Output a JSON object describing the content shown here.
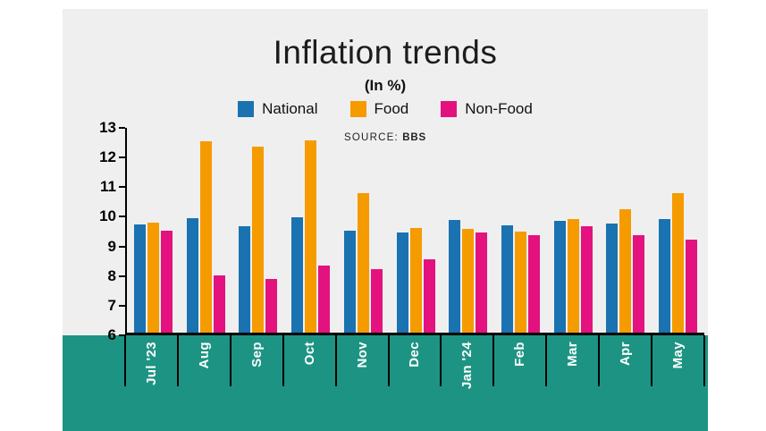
{
  "title": "Inflation trends",
  "subtitle": "(In %)",
  "source": {
    "label": "SOURCE:",
    "value": "BBS"
  },
  "legend": [
    {
      "name": "National",
      "color": "#1a72b0"
    },
    {
      "name": "Food",
      "color": "#f59b00"
    },
    {
      "name": "Non-Food",
      "color": "#e3127e"
    }
  ],
  "colors": {
    "plot_background": "#efefef",
    "band": "#1d9483",
    "axis": "#000000",
    "label_text": "#ffffff"
  },
  "chart_data": {
    "type": "bar",
    "categories": [
      "Jul '23",
      "Aug",
      "Sep",
      "Oct",
      "Nov",
      "Dec",
      "Jan '24",
      "Feb",
      "Mar",
      "Apr",
      "May"
    ],
    "series": [
      {
        "name": "National",
        "color": "#1a72b0",
        "values": [
          9.69,
          9.92,
          9.63,
          9.93,
          9.49,
          9.41,
          9.86,
          9.67,
          9.81,
          9.74,
          9.89
        ]
      },
      {
        "name": "Food",
        "color": "#f59b00",
        "values": [
          9.76,
          12.54,
          12.37,
          12.56,
          10.76,
          9.58,
          9.56,
          9.44,
          9.87,
          10.22,
          10.76
        ]
      },
      {
        "name": "Non-Food",
        "color": "#e3127e",
        "values": [
          9.47,
          7.95,
          7.82,
          8.3,
          8.16,
          8.52,
          9.42,
          9.33,
          9.64,
          9.34,
          9.19
        ]
      }
    ],
    "title": "Inflation trends",
    "subtitle": "(In %)",
    "xlabel": "",
    "ylabel": "",
    "ylim": [
      6,
      13
    ],
    "yticks": [
      6,
      7,
      8,
      9,
      10,
      11,
      12,
      13
    ],
    "grid": false,
    "legend_position": "top"
  }
}
